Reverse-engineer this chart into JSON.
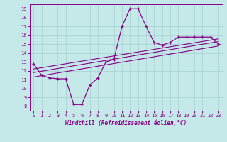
{
  "xlabel": "Windchill (Refroidissement éolien,°C)",
  "background_color": "#c5e8e8",
  "grid_color": "#a8d0d0",
  "line_color": "#880088",
  "xlim": [
    -0.5,
    23.5
  ],
  "ylim": [
    7.5,
    19.5
  ],
  "xticks": [
    0,
    1,
    2,
    3,
    4,
    5,
    6,
    7,
    8,
    9,
    10,
    11,
    12,
    13,
    14,
    15,
    16,
    17,
    18,
    19,
    20,
    21,
    22,
    23
  ],
  "yticks": [
    8,
    9,
    10,
    11,
    12,
    13,
    14,
    15,
    16,
    17,
    18,
    19
  ],
  "main_x": [
    0,
    1,
    2,
    3,
    4,
    5,
    6,
    7,
    8,
    9,
    10,
    11,
    12,
    13,
    14,
    15,
    16,
    17,
    18,
    19,
    20,
    21,
    22,
    23
  ],
  "main_y": [
    12.8,
    11.5,
    11.2,
    11.1,
    11.1,
    8.2,
    8.2,
    10.4,
    11.2,
    13.0,
    13.3,
    17.0,
    19.0,
    19.0,
    17.0,
    15.2,
    14.9,
    15.2,
    15.8,
    15.8,
    15.8,
    15.8,
    15.8,
    15.0
  ],
  "trend1_x": [
    0,
    23
  ],
  "trend1_y": [
    11.8,
    15.3
  ],
  "trend2_x": [
    0,
    23
  ],
  "trend2_y": [
    12.2,
    15.6
  ],
  "trend3_x": [
    0,
    23
  ],
  "trend3_y": [
    11.3,
    14.8
  ]
}
